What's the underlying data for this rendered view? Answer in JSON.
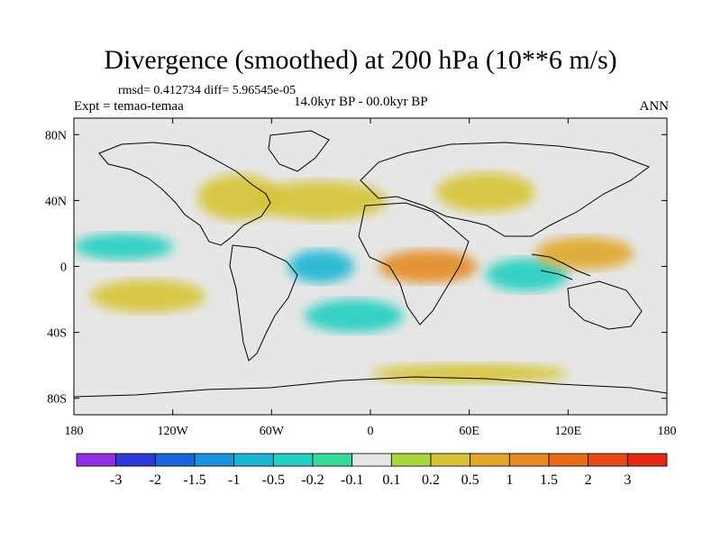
{
  "header": {
    "title": "Divergence (smoothed) at 200 hPa (10**6 m/s)",
    "stats": "rmsd= 0.412734 diff= 5.96545e-05",
    "experiment": "Expt = temao-temaa",
    "period": "14.0kyr BP - 00.0kyr BP",
    "season": "ANN"
  },
  "map": {
    "lon_range": [
      -180,
      180
    ],
    "lat_range": [
      -90,
      90
    ],
    "x_ticks": [
      {
        "value": -180,
        "label": "180"
      },
      {
        "value": -120,
        "label": "120W"
      },
      {
        "value": -60,
        "label": "60W"
      },
      {
        "value": 0,
        "label": "0"
      },
      {
        "value": 60,
        "label": "60E"
      },
      {
        "value": 120,
        "label": "120E"
      },
      {
        "value": 180,
        "label": "180"
      }
    ],
    "y_ticks": [
      {
        "value": 80,
        "label": "80N"
      },
      {
        "value": 40,
        "label": "40N"
      },
      {
        "value": 0,
        "label": "0"
      },
      {
        "value": -40,
        "label": "40S"
      },
      {
        "value": -80,
        "label": "80S"
      }
    ],
    "background_color": "#e6e6e6",
    "regions": [
      {
        "name": "atlantic-north-positive",
        "lon": -30,
        "lat": 40,
        "rx": 40,
        "ry": 12,
        "level": 2
      },
      {
        "name": "north-america-positive",
        "lon": -80,
        "lat": 42,
        "rx": 25,
        "ry": 14,
        "level": 2
      },
      {
        "name": "asia-positive",
        "lon": 70,
        "lat": 45,
        "rx": 30,
        "ry": 12,
        "level": 2
      },
      {
        "name": "atlantic-equator-negative",
        "lon": -30,
        "lat": 0,
        "rx": 20,
        "ry": 10,
        "level": -3
      },
      {
        "name": "africa-equator-positive",
        "lon": 35,
        "lat": 0,
        "rx": 30,
        "ry": 10,
        "level": 4
      },
      {
        "name": "indian-ocean-negative",
        "lon": 95,
        "lat": -5,
        "rx": 25,
        "ry": 10,
        "level": -2
      },
      {
        "name": "maritime-continent-positive",
        "lon": 130,
        "lat": 8,
        "rx": 30,
        "ry": 10,
        "level": 3
      },
      {
        "name": "pacific-south-positive",
        "lon": -135,
        "lat": -18,
        "rx": 35,
        "ry": 10,
        "level": 2
      },
      {
        "name": "pacific-equator-negative",
        "lon": -150,
        "lat": 12,
        "rx": 30,
        "ry": 8,
        "level": -2
      },
      {
        "name": "southern-band-positive",
        "lon": 60,
        "lat": -65,
        "rx": 60,
        "ry": 6,
        "level": 2
      },
      {
        "name": "south-atlantic-negative",
        "lon": -10,
        "lat": -30,
        "rx": 30,
        "ry": 10,
        "level": -2
      }
    ]
  },
  "colorbar": {
    "labels": [
      "-3",
      "-2",
      "-1.5",
      "-1",
      "-0.5",
      "-0.2",
      "-0.1",
      "0.1",
      "0.2",
      "0.5",
      "1",
      "1.5",
      "2",
      "3"
    ],
    "colors": [
      "#8e2fe0",
      "#2c3ad6",
      "#1a66d9",
      "#1893dc",
      "#1cb6d4",
      "#22cfc1",
      "#38d99a",
      "#e6e6e6",
      "#a8d63e",
      "#d6c436",
      "#e0a72a",
      "#e58a22",
      "#e86b1c",
      "#e64a17",
      "#e02a14"
    ]
  }
}
